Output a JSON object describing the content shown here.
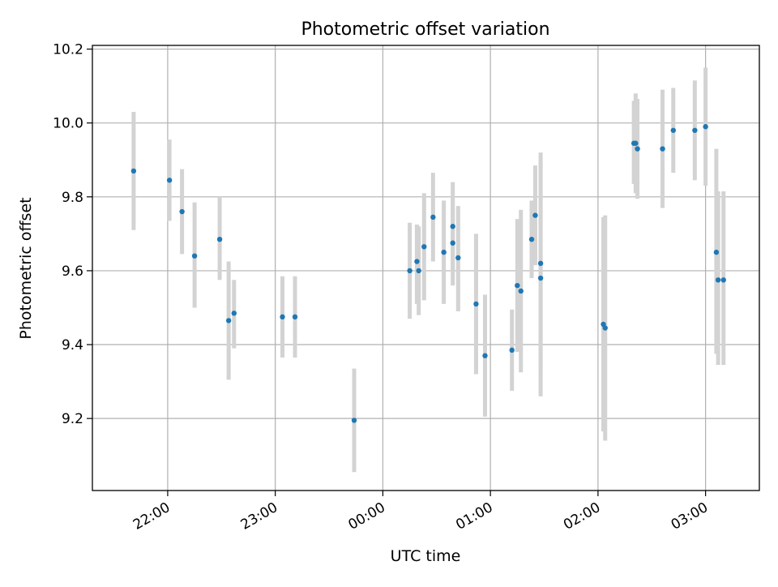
{
  "chart_data": {
    "type": "scatter",
    "title": "Photometric offset variation",
    "xlabel": "UTC time",
    "ylabel": "Photometric offset",
    "x_axis_kind": "time",
    "x_range_minutes_label": [
      "21:18",
      "03:30"
    ],
    "x_ticks": [
      "22:00",
      "23:00",
      "00:00",
      "01:00",
      "02:00",
      "03:00"
    ],
    "y_ticks": [
      "9.2",
      "9.4",
      "9.6",
      "9.8",
      "10.0",
      "10.2"
    ],
    "ylim": [
      9.005,
      10.21
    ],
    "grid": true,
    "colors": {
      "marker": "#1f77b4",
      "errorbar": "#d3d3d3",
      "grid": "#b0b0b0"
    },
    "points": [
      {
        "t": "21:41",
        "y": 9.87,
        "low": 9.71,
        "high": 10.03
      },
      {
        "t": "22:01",
        "y": 9.845,
        "low": 9.735,
        "high": 9.955
      },
      {
        "t": "22:08",
        "y": 9.76,
        "low": 9.645,
        "high": 9.875
      },
      {
        "t": "22:15",
        "y": 9.64,
        "low": 9.5,
        "high": 9.785
      },
      {
        "t": "22:29",
        "y": 9.685,
        "low": 9.575,
        "high": 9.8
      },
      {
        "t": "22:34",
        "y": 9.465,
        "low": 9.305,
        "high": 9.625
      },
      {
        "t": "22:37",
        "y": 9.485,
        "low": 9.39,
        "high": 9.575
      },
      {
        "t": "23:04",
        "y": 9.475,
        "low": 9.365,
        "high": 9.585
      },
      {
        "t": "23:11",
        "y": 9.475,
        "low": 9.365,
        "high": 9.585
      },
      {
        "t": "23:44",
        "y": 9.195,
        "low": 9.055,
        "high": 9.335
      },
      {
        "t": "00:15",
        "y": 9.6,
        "low": 9.47,
        "high": 9.73
      },
      {
        "t": "00:19",
        "y": 9.625,
        "low": 9.51,
        "high": 9.725
      },
      {
        "t": "00:20",
        "y": 9.6,
        "low": 9.48,
        "high": 9.72
      },
      {
        "t": "00:23",
        "y": 9.665,
        "low": 9.52,
        "high": 9.81
      },
      {
        "t": "00:28",
        "y": 9.745,
        "low": 9.625,
        "high": 9.865
      },
      {
        "t": "00:34",
        "y": 9.65,
        "low": 9.51,
        "high": 9.79
      },
      {
        "t": "00:39",
        "y": 9.72,
        "low": 9.6,
        "high": 9.84
      },
      {
        "t": "00:39",
        "y": 9.675,
        "low": 9.56,
        "high": 9.79
      },
      {
        "t": "00:42",
        "y": 9.635,
        "low": 9.49,
        "high": 9.775
      },
      {
        "t": "00:52",
        "y": 9.51,
        "low": 9.32,
        "high": 9.7
      },
      {
        "t": "00:57",
        "y": 9.37,
        "low": 9.205,
        "high": 9.535
      },
      {
        "t": "01:12",
        "y": 9.385,
        "low": 9.275,
        "high": 9.495
      },
      {
        "t": "01:15",
        "y": 9.56,
        "low": 9.38,
        "high": 9.74
      },
      {
        "t": "01:17",
        "y": 9.545,
        "low": 9.325,
        "high": 9.765
      },
      {
        "t": "01:23",
        "y": 9.685,
        "low": 9.58,
        "high": 9.79
      },
      {
        "t": "01:25",
        "y": 9.75,
        "low": 9.615,
        "high": 9.885
      },
      {
        "t": "01:28",
        "y": 9.62,
        "low": 9.32,
        "high": 9.92
      },
      {
        "t": "01:28",
        "y": 9.58,
        "low": 9.26,
        "high": 9.9
      },
      {
        "t": "02:03",
        "y": 9.455,
        "low": 9.165,
        "high": 9.745
      },
      {
        "t": "02:04",
        "y": 9.445,
        "low": 9.14,
        "high": 9.75
      },
      {
        "t": "02:20",
        "y": 9.945,
        "low": 9.835,
        "high": 10.06
      },
      {
        "t": "02:21",
        "y": 9.945,
        "low": 9.81,
        "high": 10.08
      },
      {
        "t": "02:22",
        "y": 9.93,
        "low": 9.795,
        "high": 10.065
      },
      {
        "t": "02:36",
        "y": 9.93,
        "low": 9.77,
        "high": 10.09
      },
      {
        "t": "02:42",
        "y": 9.98,
        "low": 9.865,
        "high": 10.095
      },
      {
        "t": "02:54",
        "y": 9.98,
        "low": 9.845,
        "high": 10.115
      },
      {
        "t": "03:00",
        "y": 9.99,
        "low": 9.83,
        "high": 10.15
      },
      {
        "t": "03:06",
        "y": 9.65,
        "low": 9.375,
        "high": 9.93
      },
      {
        "t": "03:07",
        "y": 9.575,
        "low": 9.345,
        "high": 9.815
      },
      {
        "t": "03:10",
        "y": 9.575,
        "low": 9.345,
        "high": 9.815
      }
    ]
  }
}
